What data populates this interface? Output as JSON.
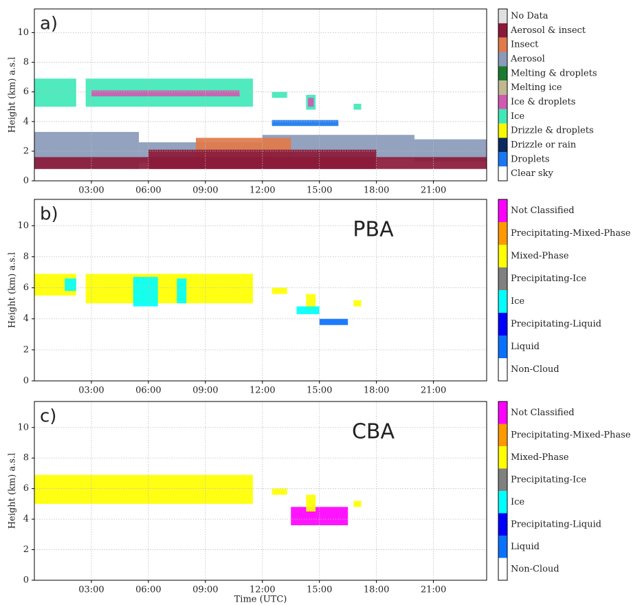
{
  "chart_data": [
    {
      "type": "classification",
      "panel_label": "a)",
      "ylabel": "Height (km) a.s.l",
      "xlim": [
        0,
        23.8
      ],
      "ylim": [
        0,
        11.6
      ],
      "xticks": [
        {
          "value": 3,
          "label": "03:00"
        },
        {
          "value": 6,
          "label": "06:00"
        },
        {
          "value": 9,
          "label": "09:00"
        },
        {
          "value": 12,
          "label": "12:00"
        },
        {
          "value": 15,
          "label": "15:00"
        },
        {
          "value": 18,
          "label": "18:00"
        },
        {
          "value": 21,
          "label": "21:00"
        }
      ],
      "yticks": [
        0,
        2,
        4,
        6,
        8,
        10
      ],
      "grid": true,
      "legend": [
        {
          "name": "No Data",
          "color": "#e0e0e0"
        },
        {
          "name": "Aerosol & insect",
          "color": "#8b1a3a"
        },
        {
          "name": "Insect",
          "color": "#e07a4a"
        },
        {
          "name": "Aerosol",
          "color": "#8a9ab8"
        },
        {
          "name": "Melting & droplets",
          "color": "#1a7a30"
        },
        {
          "name": "Melting ice",
          "color": "#c0b890"
        },
        {
          "name": "Ice & droplets",
          "color": "#d05ab0"
        },
        {
          "name": "Ice",
          "color": "#40e8b8"
        },
        {
          "name": "Drizzle & droplets",
          "color": "#f8f800"
        },
        {
          "name": "Drizzle or rain",
          "color": "#0a2a60"
        },
        {
          "name": "Droplets",
          "color": "#1a78f0"
        },
        {
          "name": "Clear  sky",
          "color": "#ffffff"
        }
      ],
      "regions": [
        {
          "class": 3,
          "x": [
            0,
            5.5
          ],
          "y": [
            0.8,
            3.3
          ]
        },
        {
          "class": 3,
          "x": [
            5.5,
            12
          ],
          "y": [
            1.2,
            2.6
          ]
        },
        {
          "class": 3,
          "x": [
            12,
            20
          ],
          "y": [
            1.5,
            3.1
          ]
        },
        {
          "class": 3,
          "x": [
            20,
            23.8
          ],
          "y": [
            1.3,
            2.8
          ]
        },
        {
          "class": 2,
          "x": [
            8.5,
            13.5
          ],
          "y": [
            1.6,
            2.9
          ]
        },
        {
          "class": 1,
          "x": [
            0,
            23.8
          ],
          "y": [
            0.8,
            1.6
          ]
        },
        {
          "class": 1,
          "x": [
            6,
            18
          ],
          "y": [
            0.8,
            2.1
          ]
        },
        {
          "class": 7,
          "x": [
            0,
            2.2
          ],
          "y": [
            5,
            6.9
          ]
        },
        {
          "class": 7,
          "x": [
            2.7,
            11.5
          ],
          "y": [
            5,
            6.9
          ]
        },
        {
          "class": 7,
          "x": [
            12.5,
            13.3
          ],
          "y": [
            5.6,
            6
          ]
        },
        {
          "class": 7,
          "x": [
            14.3,
            14.8
          ],
          "y": [
            4.8,
            5.8
          ]
        },
        {
          "class": 7,
          "x": [
            16.8,
            17.2
          ],
          "y": [
            4.8,
            5.2
          ]
        },
        {
          "class": 6,
          "x": [
            3,
            10.8
          ],
          "y": [
            5.7,
            6.1
          ]
        },
        {
          "class": 6,
          "x": [
            14.4,
            14.7
          ],
          "y": [
            5,
            5.6
          ]
        },
        {
          "class": 10,
          "x": [
            12.5,
            16
          ],
          "y": [
            3.7,
            4.1
          ]
        }
      ]
    },
    {
      "type": "classification",
      "panel_label": "b)",
      "annotation": "PBA",
      "ylabel": "Height (km) a.s.l",
      "xlim": [
        0,
        23.8
      ],
      "ylim": [
        0,
        11.7
      ],
      "xticks": [
        {
          "value": 3,
          "label": "03:00"
        },
        {
          "value": 6,
          "label": "06:00"
        },
        {
          "value": 9,
          "label": "09:00"
        },
        {
          "value": 12,
          "label": "12:00"
        },
        {
          "value": 15,
          "label": "15:00"
        },
        {
          "value": 18,
          "label": "18:00"
        },
        {
          "value": 21,
          "label": "21:00"
        }
      ],
      "yticks": [
        0,
        2,
        4,
        6,
        8,
        10
      ],
      "grid": true,
      "legend": [
        {
          "name": "Not Classified",
          "color": "#ff00ff"
        },
        {
          "name": "Precipitating-Mixed-Phase",
          "color": "#ff9900"
        },
        {
          "name": "Mixed-Phase",
          "color": "#ffff00"
        },
        {
          "name": "Precipitating-Ice",
          "color": "#808080"
        },
        {
          "name": "Ice",
          "color": "#00ffff"
        },
        {
          "name": "Precipitating-Liquid",
          "color": "#0000ff"
        },
        {
          "name": "Liquid",
          "color": "#0a70ff"
        },
        {
          "name": "Non-Cloud",
          "color": "#ffffff"
        }
      ],
      "regions": [
        {
          "class": 2,
          "x": [
            0,
            2.2
          ],
          "y": [
            5.5,
            6.9
          ]
        },
        {
          "class": 4,
          "x": [
            1.6,
            2.2
          ],
          "y": [
            5.8,
            6.6
          ]
        },
        {
          "class": 2,
          "x": [
            2.7,
            11.5
          ],
          "y": [
            5,
            6.9
          ]
        },
        {
          "class": 4,
          "x": [
            5.2,
            6.5
          ],
          "y": [
            4.8,
            6.7
          ]
        },
        {
          "class": 4,
          "x": [
            7.5,
            8
          ],
          "y": [
            5,
            6.6
          ]
        },
        {
          "class": 2,
          "x": [
            12.5,
            13.3
          ],
          "y": [
            5.6,
            6
          ]
        },
        {
          "class": 2,
          "x": [
            14.3,
            14.8
          ],
          "y": [
            4.5,
            5.6
          ]
        },
        {
          "class": 4,
          "x": [
            13.8,
            15
          ],
          "y": [
            4.3,
            4.8
          ]
        },
        {
          "class": 6,
          "x": [
            15,
            16.5
          ],
          "y": [
            3.6,
            4
          ]
        },
        {
          "class": 2,
          "x": [
            16.8,
            17.2
          ],
          "y": [
            4.8,
            5.2
          ]
        }
      ]
    },
    {
      "type": "classification",
      "panel_label": "c)",
      "annotation": "CBA",
      "ylabel": "Height (km) a.s.l",
      "xlabel": "Time (UTC)",
      "xlim": [
        0,
        23.8
      ],
      "ylim": [
        0,
        11.7
      ],
      "xticks": [
        {
          "value": 3,
          "label": "03:00"
        },
        {
          "value": 6,
          "label": "06:00"
        },
        {
          "value": 9,
          "label": "09:00"
        },
        {
          "value": 12,
          "label": "12:00"
        },
        {
          "value": 15,
          "label": "15:00"
        },
        {
          "value": 18,
          "label": "18:00"
        },
        {
          "value": 21,
          "label": "21:00"
        }
      ],
      "yticks": [
        0,
        2,
        4,
        6,
        8,
        10
      ],
      "grid": true,
      "legend": [
        {
          "name": "Not Classified",
          "color": "#ff00ff"
        },
        {
          "name": "Precipitating-Mixed-Phase",
          "color": "#ff9900"
        },
        {
          "name": "Mixed-Phase",
          "color": "#ffff00"
        },
        {
          "name": "Precipitating-Ice",
          "color": "#808080"
        },
        {
          "name": "Ice",
          "color": "#00ffff"
        },
        {
          "name": "Precipitating-Liquid",
          "color": "#0000ff"
        },
        {
          "name": "Liquid",
          "color": "#0a70ff"
        },
        {
          "name": "Non-Cloud",
          "color": "#ffffff"
        }
      ],
      "regions": [
        {
          "class": 2,
          "x": [
            0,
            11.5
          ],
          "y": [
            5,
            6.9
          ]
        },
        {
          "class": 2,
          "x": [
            12.5,
            13.3
          ],
          "y": [
            5.6,
            6
          ]
        },
        {
          "class": 0,
          "x": [
            13.5,
            16.5
          ],
          "y": [
            3.6,
            4.8
          ]
        },
        {
          "class": 2,
          "x": [
            14.3,
            14.8
          ],
          "y": [
            4.5,
            5.6
          ]
        },
        {
          "class": 2,
          "x": [
            16.8,
            17.2
          ],
          "y": [
            4.8,
            5.2
          ]
        }
      ]
    }
  ]
}
